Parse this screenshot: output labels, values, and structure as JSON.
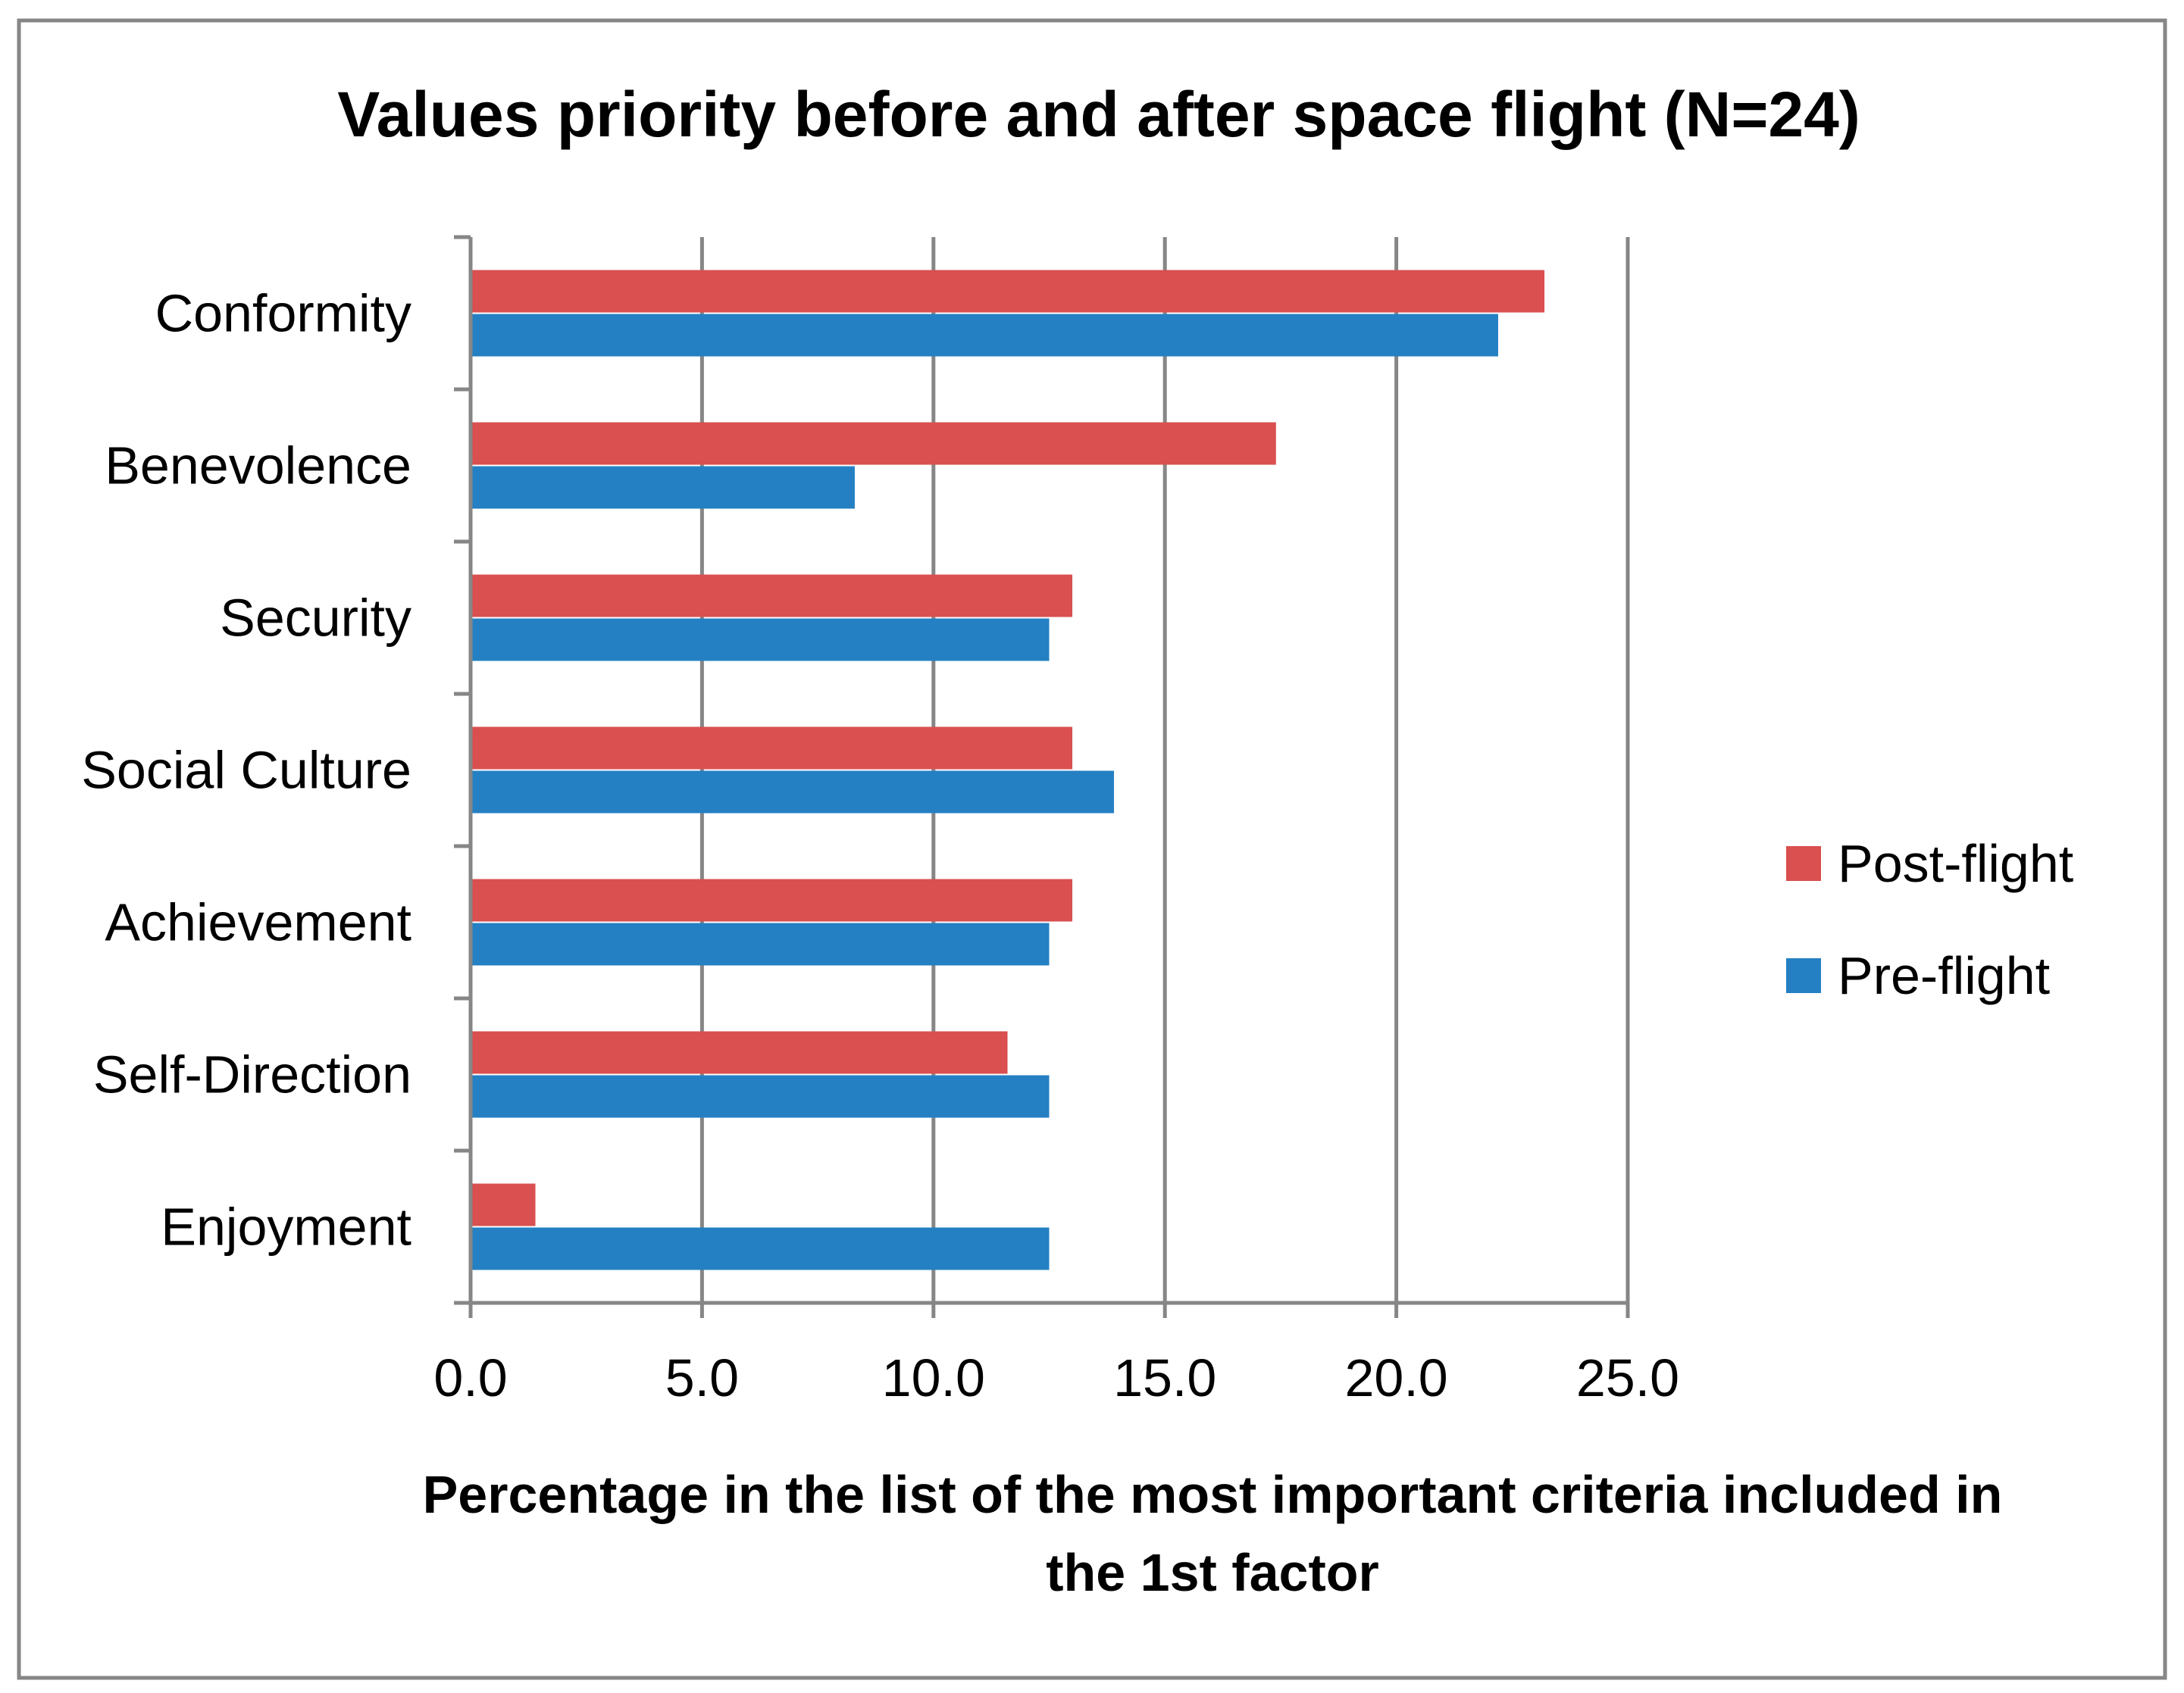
{
  "chart_data": {
    "type": "bar",
    "orientation": "horizontal",
    "title": "Values priority before and after space flight (N=24)",
    "xlabel_lines": [
      "Percentage in the list of the most important criteria included in",
      "the 1st factor"
    ],
    "ylabel": "",
    "categories": [
      "Conformity",
      "Benevolence",
      "Security",
      "Social Culture",
      "Achievement",
      "Self-Direction",
      "Enjoyment"
    ],
    "series": [
      {
        "name": "Post-flight",
        "color": "#DA4F4F",
        "values": [
          23.2,
          17.4,
          13.0,
          13.0,
          13.0,
          11.6,
          1.4
        ]
      },
      {
        "name": "Pre-flight",
        "color": "#2580C3",
        "values": [
          22.2,
          8.3,
          12.5,
          13.9,
          12.5,
          12.5,
          12.5
        ]
      }
    ],
    "xlim": [
      0,
      25
    ],
    "xticks": [
      "0.0",
      "5.0",
      "10.0",
      "15.0",
      "20.0",
      "25.0"
    ],
    "tick_step": 5,
    "grid": true,
    "legend_position": "right",
    "gridline_color": "#868686",
    "frame_color": "#868686"
  }
}
